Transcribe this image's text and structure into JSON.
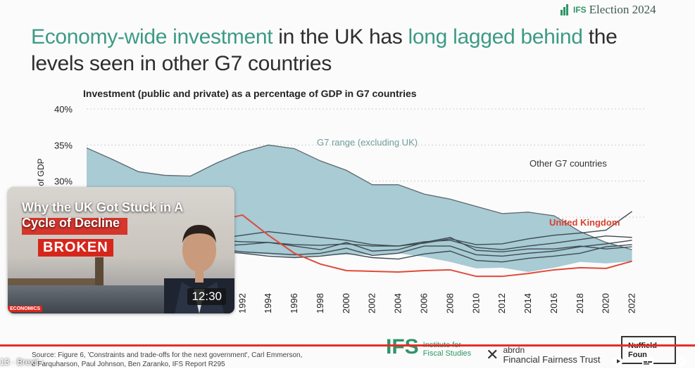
{
  "slide": {
    "brand_short": "IFS",
    "brand_text": "Election 2024",
    "headline_parts": [
      {
        "text": "Economy-wide investment",
        "highlight": true
      },
      {
        "text": " in the UK has ",
        "highlight": false
      },
      {
        "text": "long lagged behind",
        "highlight": true
      },
      {
        "text": " the levels seen in other G7 countries",
        "highlight": false
      }
    ],
    "source_line1": "Source: Figure 6, 'Constraints and trade-offs for the next government', Carl Emmerson,",
    "source_line2": "e Farquharson, Paul Johnson, Ben Zaranko, IFS Report R295",
    "logo_ifs_big": "IFS",
    "logo_ifs_line1": "Institute for",
    "logo_ifs_line2": "Fiscal Studies",
    "logo_abrdn_line1": "abrdn",
    "logo_abrdn_line2": "Financial Fairness Trust",
    "logo_nuffield_line1": "Nuffield",
    "logo_nuffield_line2": "Foun"
  },
  "chart_data": {
    "type": "line",
    "title": "Investment (public and private) as a percentage of GDP in G7 countries",
    "ylabel": "of GDP",
    "ylim": [
      0,
      40
    ],
    "yticks": [
      "40%",
      "35%",
      "30%",
      "25%"
    ],
    "xlim": [
      1980,
      2023
    ],
    "xticks": [
      "1992",
      "1994",
      "1996",
      "1998",
      "2000",
      "2002",
      "2004",
      "2006",
      "2008",
      "2010",
      "2012",
      "2014",
      "2016",
      "2018",
      "2020",
      "2022"
    ],
    "grid": true,
    "annotations": [
      "G7 range (excluding UK)",
      "Other G7 countries",
      "United Kingdom"
    ],
    "colors": {
      "range_fill": "#9ec5cf",
      "others": "#3f4b52",
      "uk": "#e1493a",
      "range_label": "#6d9e98",
      "uk_label": "#d7412f"
    },
    "x": [
      1980,
      1982,
      1984,
      1986,
      1988,
      1990,
      1992,
      1994,
      1996,
      1998,
      2000,
      2002,
      2004,
      2006,
      2008,
      2010,
      2012,
      2014,
      2016,
      2018,
      2020,
      2022
    ],
    "series": [
      {
        "name": "range_upper",
        "values": [
          34.6,
          33,
          31.3,
          30.8,
          30.7,
          32.5,
          34,
          35,
          34.5,
          32.8,
          31.5,
          29.5,
          29.5,
          28.2,
          27.5,
          26.5,
          25.5,
          25.7,
          25.2,
          23,
          21.5,
          20.5
        ],
        "role": "band"
      },
      {
        "name": "range_lower",
        "values": [
          24.8,
          24.2,
          23.2,
          22,
          21,
          20.5,
          20,
          19.8,
          19.5,
          19.7,
          19.8,
          19.8,
          20,
          19.5,
          18.8,
          17.9,
          18,
          17.4,
          18,
          18.8,
          18.6,
          18.9
        ],
        "role": "band"
      },
      {
        "name": "g7a",
        "values": [
          25.6,
          25,
          24,
          23.2,
          22.5,
          22,
          22.5,
          23,
          22.6,
          22.2,
          21.8,
          21.2,
          21,
          21.4,
          22,
          21.2,
          21.3,
          22,
          22.5,
          22.8,
          23.2,
          25.8
        ],
        "role": "other"
      },
      {
        "name": "g7b",
        "values": [
          24.7,
          24,
          23.3,
          22.6,
          22,
          21.8,
          21.6,
          21.5,
          21.2,
          21.1,
          21.3,
          21,
          21,
          21.6,
          21.8,
          20.8,
          20.5,
          21,
          21.4,
          21.9,
          22.4,
          22.2
        ],
        "role": "other"
      },
      {
        "name": "g7c",
        "values": [
          24.2,
          23.5,
          22.8,
          22.2,
          21.5,
          21,
          21.2,
          21.5,
          21,
          20.5,
          21.5,
          20.3,
          20.5,
          21.5,
          22.2,
          20.4,
          20.2,
          20.6,
          20.6,
          21,
          20.6,
          20.9
        ],
        "role": "other"
      },
      {
        "name": "g7d",
        "values": [
          23.6,
          23,
          22.3,
          21.7,
          21,
          20.6,
          20.2,
          20,
          19.8,
          20,
          20.7,
          19.7,
          20,
          21,
          21,
          19.8,
          19.6,
          20,
          20.3,
          20.9,
          21.3,
          21.8
        ],
        "role": "other"
      },
      {
        "name": "g7e",
        "values": [
          22.8,
          22.2,
          21.7,
          21.1,
          20.6,
          20.3,
          20,
          19.6,
          19.4,
          19.6,
          20,
          19.4,
          19.2,
          19.9,
          20.3,
          19,
          18.8,
          19.3,
          19.6,
          20,
          20.9,
          21.2
        ],
        "role": "other"
      },
      {
        "name": "United Kingdom",
        "values": [
          20,
          19.6,
          19.4,
          20,
          21.5,
          24.5,
          25.3,
          22.5,
          20,
          18.5,
          17.6,
          17.5,
          17.4,
          17.6,
          17.7,
          16.8,
          16.8,
          17.2,
          17.7,
          18,
          17.9,
          18.9
        ],
        "role": "uk"
      }
    ]
  },
  "video_card": {
    "title": "Why the UK Got Stuck in A Cycle of Decline",
    "thumb_text": "BROKEN",
    "duration": "12:30",
    "channel_tag": "ECONOMICS"
  },
  "player": {
    "chapter_prefix": "13 ·",
    "chapter_label": "Brexit",
    "progress_fraction": 1.0
  }
}
